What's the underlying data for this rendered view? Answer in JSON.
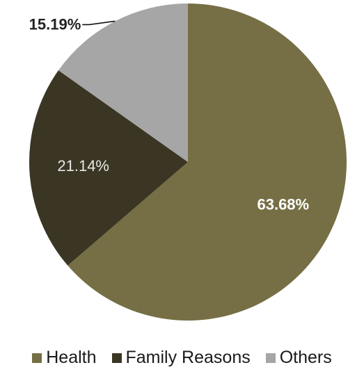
{
  "chart_data": {
    "type": "pie",
    "categories": [
      "Health",
      "Family Reasons",
      "Others"
    ],
    "values": [
      63.68,
      21.14,
      15.19
    ],
    "labels": [
      "63.68%",
      "21.14%",
      "15.19%"
    ],
    "colors": [
      "#766f45",
      "#3a3623",
      "#a6a6a6"
    ],
    "label_colors": [
      "#ffffff",
      "#e8e8e8",
      "#222222"
    ],
    "label_bold": [
      true,
      false,
      true
    ],
    "start_angle_deg": 0,
    "direction": "clockwise",
    "legend_position": "bottom",
    "title": ""
  },
  "legend": {
    "items": [
      {
        "label": "Health",
        "color": "#766f45"
      },
      {
        "label": "Family Reasons",
        "color": "#3a3623"
      },
      {
        "label": "Others",
        "color": "#a6a6a6"
      }
    ]
  }
}
